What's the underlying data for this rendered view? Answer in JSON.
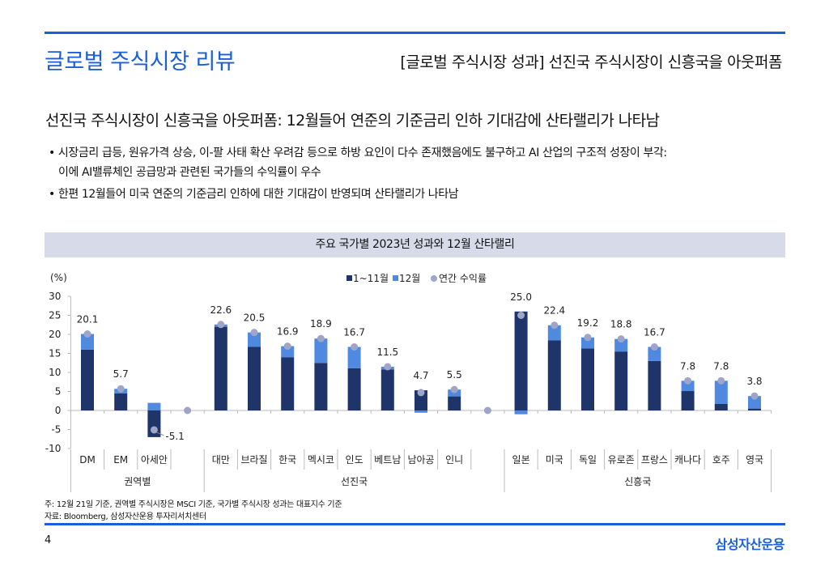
{
  "header": {
    "title": "글로벌 주식시장 리뷰",
    "subtitle": "[글로벌 주식시장 성과] 선진국 주식시장이 신흥국을 아웃퍼폼"
  },
  "heading": "선진국 주식시장이 신흥국을 아웃퍼폼: 12월들어 연준의 기준금리 인하 기대감에 산타랠리가 나타남",
  "bullets": [
    "• 시장금리 급등, 원유가격 상승, 이-팔 사태 확산 우려감 등으로 하방 요인이 다수 존재했음에도 불구하고 AI 산업의 구조적 성장이 부각:",
    "이에 AI밸류체인 공급망과 관련된 국가들의 수익률이 우수",
    "• 한편 12월들어 미국 연준의 기준금리 인하에 대한 기대감이 반영되며 산타랠리가 나타남"
  ],
  "footnotes": {
    "note": "주: 12월 21일 기준, 권역별 주식시장은 MSCI 기준, 국가별 주식시장 성과는 대표지수 기준",
    "source": "자료: Bloomberg, 삼성자산운용 투자리서치센터"
  },
  "footer": {
    "page": "4",
    "logo": "삼성자산운용"
  },
  "chart_data": {
    "type": "bar",
    "title": "주요 국가별 2023년 성과와 12월 산타랠리",
    "ylabel": "(%)",
    "ylim": [
      -10,
      30
    ],
    "yticks": [
      "30",
      "25",
      "20",
      "15",
      "10",
      "5",
      "0",
      "-5",
      "-10"
    ],
    "yticks_values": [
      30,
      25,
      20,
      15,
      10,
      5,
      0,
      -5,
      -10
    ],
    "legend": [
      "1~11월",
      "12월",
      "연간 수익률"
    ],
    "legend_position": "top",
    "colors": {
      "jan_nov": "#1f3468",
      "dec": "#5089e0",
      "annual": "#9fa5c8"
    },
    "categories": [
      "DM",
      "EM",
      "아세안",
      "",
      "대만",
      "브라질",
      "한국",
      "멕시코",
      "인도",
      "베트남",
      "남아공",
      "인니",
      "",
      "일본",
      "미국",
      "독일",
      "유로존",
      "프랑스",
      "캐나다",
      "호주",
      "영국"
    ],
    "groups": [
      {
        "label": "권역별",
        "span": 4
      },
      {
        "label": "선진국",
        "span": 9
      },
      {
        "label": "신흥국",
        "span": 8
      }
    ],
    "series": [
      {
        "name": "1~11월",
        "values": [
          16.0,
          4.5,
          -7.0,
          null,
          22.0,
          16.7,
          14.0,
          12.5,
          11.1,
          10.8,
          5.3,
          3.7,
          null,
          26.0,
          18.4,
          16.3,
          15.5,
          13.0,
          5.1,
          1.7,
          0.5
        ]
      },
      {
        "name": "12월",
        "values": [
          4.1,
          1.2,
          2.0,
          null,
          0.6,
          3.8,
          2.9,
          6.4,
          5.6,
          0.7,
          -0.6,
          1.8,
          null,
          -1.0,
          4.0,
          2.9,
          3.3,
          3.7,
          2.7,
          6.1,
          3.3
        ]
      },
      {
        "name": "연간 수익률",
        "values": [
          20.1,
          5.7,
          -5.1,
          0,
          22.6,
          20.5,
          16.9,
          18.9,
          16.7,
          11.5,
          4.7,
          5.5,
          0,
          25.0,
          22.4,
          19.2,
          18.8,
          16.7,
          7.8,
          7.8,
          3.8
        ]
      }
    ],
    "data_labels": [
      "20.1",
      "5.7",
      "-5.1",
      "",
      "22.6",
      "20.5",
      "16.9",
      "18.9",
      "16.7",
      "11.5",
      "4.7",
      "5.5",
      "",
      "25.0",
      "22.4",
      "19.2",
      "18.8",
      "16.7",
      "7.8",
      "7.8",
      "3.8"
    ]
  }
}
